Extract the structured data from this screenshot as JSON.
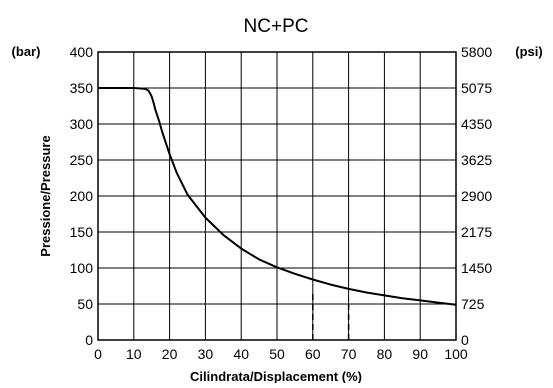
{
  "chart_data": {
    "type": "line",
    "title": "NC+PC",
    "xlabel": "Cilindrata/Displacement (%)",
    "ylabel": "Pressione/Pressure",
    "y_unit_left": "(bar)",
    "y_unit_right": "(psi)",
    "xlim": [
      0,
      100
    ],
    "ylim": [
      0,
      400
    ],
    "x_ticks": [
      "0",
      "10",
      "20",
      "30",
      "40",
      "50",
      "60",
      "70",
      "80",
      "90",
      "100"
    ],
    "y_ticks_left": [
      "0",
      "50",
      "100",
      "150",
      "200",
      "250",
      "300",
      "350",
      "400"
    ],
    "y_ticks_right": [
      "0",
      "725",
      "1450",
      "2175",
      "2900",
      "3625",
      "4350",
      "5075",
      "5800"
    ],
    "grid": true,
    "series": [
      {
        "x": [
          0,
          10,
          13,
          14,
          14.5,
          15,
          15.5,
          16,
          17,
          18,
          20,
          22,
          25,
          30,
          35,
          40,
          45,
          50,
          55,
          60,
          65,
          70,
          75,
          80,
          85,
          90,
          95,
          100
        ],
        "y": [
          350,
          350,
          349,
          347,
          343,
          338,
          330,
          320,
          305,
          288,
          258,
          232,
          202,
          170,
          146,
          127,
          112,
          101,
          92,
          84,
          77,
          71,
          66,
          62,
          58,
          55,
          52,
          49
        ]
      }
    ],
    "dashed_markers": [
      {
        "x": 60,
        "y_from": 0,
        "y_to": 68
      },
      {
        "x": 70,
        "y_from": 0,
        "y_to": 56
      }
    ],
    "colors": {
      "line": "#000000",
      "grid": "#000000",
      "background": "#ffffff"
    }
  }
}
